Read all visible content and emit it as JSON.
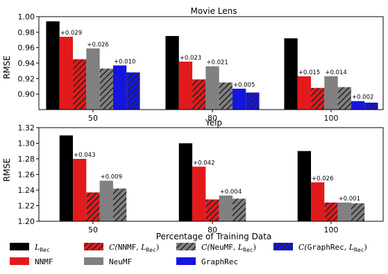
{
  "chart_data": [
    {
      "type": "bar",
      "title": "Movie Lens",
      "xlabel": "",
      "ylabel": "RMSE",
      "categories": [
        "50",
        "80",
        "100"
      ],
      "ylim": [
        0.88,
        1.0
      ],
      "yticks": [
        "0.90",
        "0.92",
        "0.94",
        "0.96",
        "0.98",
        "1.00"
      ],
      "series": [
        {
          "key": "rec",
          "values": [
            0.994,
            0.975,
            0.972
          ]
        },
        {
          "key": "nnmf",
          "values": [
            0.974,
            0.942,
            0.923
          ]
        },
        {
          "key": "cnnmf",
          "values": [
            0.945,
            0.919,
            0.908
          ]
        },
        {
          "key": "neumf",
          "values": [
            0.959,
            0.936,
            0.923
          ]
        },
        {
          "key": "cneumf",
          "values": [
            0.933,
            0.915,
            0.909
          ]
        },
        {
          "key": "graphrec",
          "values": [
            0.937,
            0.907,
            0.891
          ]
        },
        {
          "key": "cgraphrec",
          "values": [
            0.928,
            0.902,
            0.889
          ]
        }
      ],
      "annotations": [
        {
          "series": "nnmf",
          "category": 0,
          "text": "+0.029"
        },
        {
          "series": "neumf",
          "category": 0,
          "text": "+0.026"
        },
        {
          "series": "graphrec",
          "category": 0,
          "text": "+0.010"
        },
        {
          "series": "nnmf",
          "category": 1,
          "text": "+0.023"
        },
        {
          "series": "neumf",
          "category": 1,
          "text": "+0.021"
        },
        {
          "series": "graphrec",
          "category": 1,
          "text": "+0.005"
        },
        {
          "series": "nnmf",
          "category": 2,
          "text": "+0.015"
        },
        {
          "series": "neumf",
          "category": 2,
          "text": "+0.014"
        },
        {
          "series": "graphrec",
          "category": 2,
          "text": "+0.002"
        }
      ]
    },
    {
      "type": "bar",
      "title": "Yelp",
      "xlabel": "Percentage of Training Data",
      "ylabel": "RMSE",
      "categories": [
        "50",
        "80",
        "100"
      ],
      "ylim": [
        1.2,
        1.32
      ],
      "yticks": [
        "1.20",
        "1.22",
        "1.24",
        "1.26",
        "1.28",
        "1.30",
        "1.32"
      ],
      "series": [
        {
          "key": "rec",
          "values": [
            1.31,
            1.3,
            1.29
          ]
        },
        {
          "key": "nnmf",
          "values": [
            1.28,
            1.27,
            1.25
          ]
        },
        {
          "key": "cnnmf",
          "values": [
            1.237,
            1.228,
            1.224
          ]
        },
        {
          "key": "neumf",
          "values": [
            1.252,
            1.233,
            1.224
          ]
        },
        {
          "key": "cneumf",
          "values": [
            1.242,
            1.229,
            1.223
          ]
        }
      ],
      "annotations": [
        {
          "series": "nnmf",
          "category": 0,
          "text": "+0.043"
        },
        {
          "series": "neumf",
          "category": 0,
          "text": "+0.009"
        },
        {
          "series": "nnmf",
          "category": 1,
          "text": "+0.042"
        },
        {
          "series": "neumf",
          "category": 1,
          "text": "+0.004"
        },
        {
          "series": "nnmf",
          "category": 2,
          "text": "+0.026"
        },
        {
          "series": "neumf",
          "category": 2,
          "text": "+0.001"
        }
      ]
    }
  ],
  "legend": [
    {
      "key": "rec",
      "color": "#000000",
      "hatch": false
    },
    {
      "key": "cnnmf",
      "color": "#e31a1c",
      "hatch": true
    },
    {
      "key": "cneumf",
      "color": "#808080",
      "hatch": true
    },
    {
      "key": "cgraphrec",
      "color": "#1515e0",
      "hatch": true
    },
    {
      "key": "nnmf",
      "color": "#e31a1c",
      "hatch": false
    },
    {
      "key": "neumf",
      "color": "#808080",
      "hatch": false
    },
    {
      "key": "graphrec",
      "color": "#1515e0",
      "hatch": false
    }
  ],
  "legend_labels": {
    "rec": {
      "main": "L",
      "sub": "Rec"
    },
    "cnnmf": {
      "pre": "C(",
      "mono": "NNMF",
      "mid": ", L",
      "sub": "Rec",
      "post": ")"
    },
    "cneumf": {
      "pre": "C(",
      "mono": "NeuMF",
      "mid": ", L",
      "sub": "Rec",
      "post": ")"
    },
    "cgraphrec": {
      "pre": "C(",
      "mono": "GraphRec",
      "mid": ", L",
      "sub": "Rec",
      "post": ")"
    },
    "nnmf": {
      "mono": "NNMF"
    },
    "neumf": {
      "mono": "NeuMF"
    },
    "graphrec": {
      "mono": "GraphRec"
    }
  },
  "colors": {
    "rec": "#000000",
    "nnmf": "#e31a1c",
    "cnnmf": "#e31a1c",
    "neumf": "#808080",
    "cneumf": "#808080",
    "graphrec": "#1515e0",
    "cgraphrec": "#1515e0"
  }
}
